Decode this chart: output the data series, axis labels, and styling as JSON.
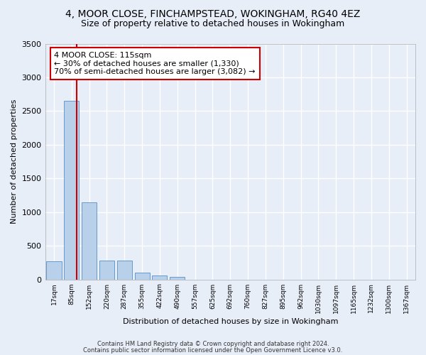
{
  "title1": "4, MOOR CLOSE, FINCHAMPSTEAD, WOKINGHAM, RG40 4EZ",
  "title2": "Size of property relative to detached houses in Wokingham",
  "xlabel": "Distribution of detached houses by size in Wokingham",
  "ylabel": "Number of detached properties",
  "footnote1": "Contains HM Land Registry data © Crown copyright and database right 2024.",
  "footnote2": "Contains public sector information licensed under the Open Government Licence v3.0.",
  "bar_labels": [
    "17sqm",
    "85sqm",
    "152sqm",
    "220sqm",
    "287sqm",
    "355sqm",
    "422sqm",
    "490sqm",
    "557sqm",
    "625sqm",
    "692sqm",
    "760sqm",
    "827sqm",
    "895sqm",
    "962sqm",
    "1030sqm",
    "1097sqm",
    "1165sqm",
    "1232sqm",
    "1300sqm",
    "1367sqm"
  ],
  "bar_values": [
    270,
    2650,
    1140,
    280,
    280,
    100,
    55,
    40,
    0,
    0,
    0,
    0,
    0,
    0,
    0,
    0,
    0,
    0,
    0,
    0,
    0
  ],
  "bar_color": "#b8d0ea",
  "bar_edge_color": "#6699cc",
  "property_line_x": 1.3,
  "red_line_color": "#cc0000",
  "annotation_text": "4 MOOR CLOSE: 115sqm\n← 30% of detached houses are smaller (1,330)\n70% of semi-detached houses are larger (3,082) →",
  "annotation_box_color": "#ffffff",
  "annotation_box_edge": "#cc0000",
  "ylim": [
    0,
    3500
  ],
  "yticks": [
    0,
    500,
    1000,
    1500,
    2000,
    2500,
    3000,
    3500
  ],
  "bg_color": "#e8eef8",
  "grid_color": "#ffffff",
  "title_fontsize": 10,
  "subtitle_fontsize": 9
}
